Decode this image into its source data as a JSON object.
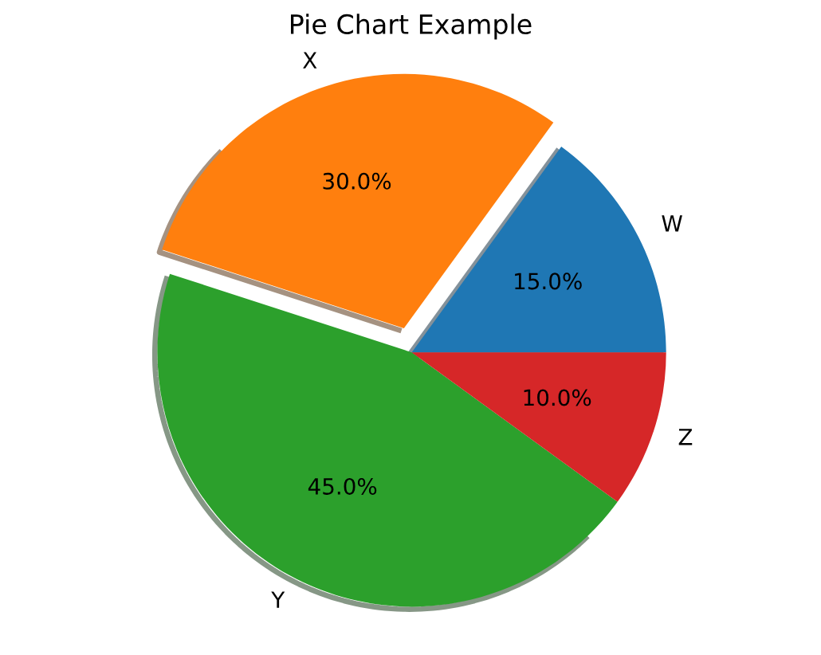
{
  "chart_data": {
    "type": "pie",
    "title": "Pie Chart Example",
    "categories": [
      "W",
      "X",
      "Y",
      "Z"
    ],
    "values": [
      15,
      30,
      45,
      10
    ],
    "colors": [
      "#1f77b4",
      "#ff7f0e",
      "#2ca02c",
      "#d62728"
    ],
    "value_labels": [
      "15.0%",
      "30.0%",
      "45.0%",
      "10.0%"
    ]
  }
}
